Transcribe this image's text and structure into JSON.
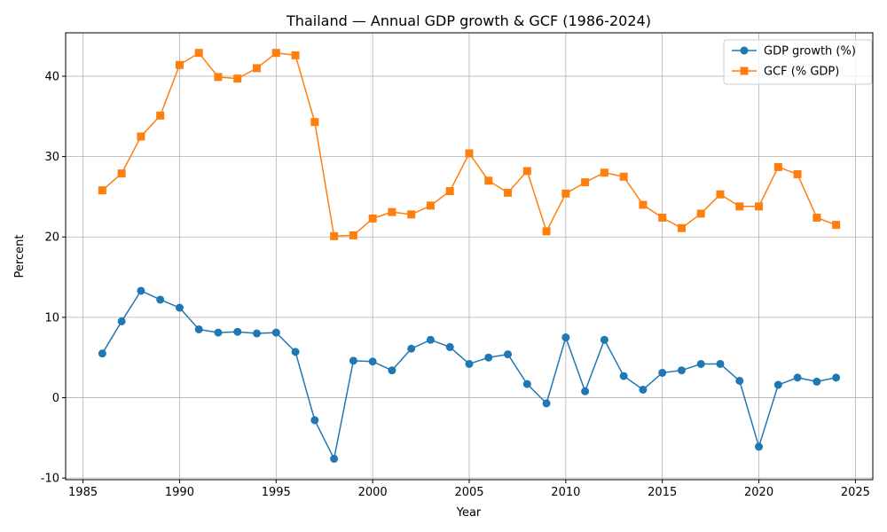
{
  "chart_data": {
    "type": "line",
    "title": "Thailand — Annual GDP growth & GCF (1986-2024)",
    "xlabel": "Year",
    "ylabel": "Percent",
    "xlim": [
      1984.1,
      2025.9
    ],
    "ylim": [
      -10.2,
      45.4
    ],
    "xticks": [
      1985,
      1990,
      1995,
      2000,
      2005,
      2010,
      2015,
      2020,
      2025
    ],
    "yticks": [
      -10,
      0,
      10,
      20,
      30,
      40
    ],
    "grid": true,
    "legend_position": "top-right",
    "x": [
      1986,
      1987,
      1988,
      1989,
      1990,
      1991,
      1992,
      1993,
      1994,
      1995,
      1996,
      1997,
      1998,
      1999,
      2000,
      2001,
      2002,
      2003,
      2004,
      2005,
      2006,
      2007,
      2008,
      2009,
      2010,
      2011,
      2012,
      2013,
      2014,
      2015,
      2016,
      2017,
      2018,
      2019,
      2020,
      2021,
      2022,
      2023,
      2024
    ],
    "series": [
      {
        "name": "GDP growth (%)",
        "color": "#1f77b4",
        "marker": "circle",
        "values": [
          5.5,
          9.5,
          13.3,
          12.2,
          11.2,
          8.5,
          8.1,
          8.2,
          8.0,
          8.1,
          5.7,
          -2.8,
          -7.6,
          4.6,
          4.5,
          3.4,
          6.1,
          7.2,
          6.3,
          4.2,
          5.0,
          5.4,
          1.7,
          -0.7,
          7.5,
          0.8,
          7.2,
          2.7,
          1.0,
          3.1,
          3.4,
          4.2,
          4.2,
          2.1,
          -6.1,
          1.6,
          2.5,
          2.0,
          2.5
        ]
      },
      {
        "name": "GCF (% GDP)",
        "color": "#ff7f0e",
        "marker": "square",
        "values": [
          25.8,
          27.9,
          32.5,
          35.1,
          41.4,
          42.9,
          39.9,
          39.7,
          41.0,
          42.9,
          42.6,
          34.3,
          20.1,
          20.2,
          22.3,
          23.1,
          22.8,
          23.9,
          25.7,
          30.4,
          27.0,
          25.5,
          28.2,
          20.7,
          25.4,
          26.8,
          28.0,
          27.5,
          24.0,
          22.4,
          21.1,
          22.9,
          25.3,
          23.8,
          23.8,
          28.7,
          27.8,
          22.4,
          21.5
        ]
      }
    ]
  }
}
